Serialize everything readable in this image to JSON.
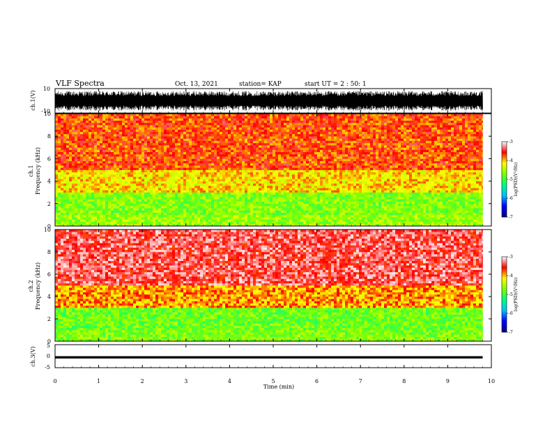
{
  "header": {
    "title": "VLF Spectra",
    "date": "Oct. 13, 2021",
    "station": "station= KAP",
    "start": "start UT = 2 : 50: 1"
  },
  "colors": {
    "spectrogram_scale": [
      "#00008b",
      "#0000ff",
      "#00bfff",
      "#00ff7f",
      "#7fff00",
      "#ffff00",
      "#ff0000",
      "#ffffff"
    ],
    "waveform": "#000000"
  },
  "chart_data": [
    {
      "type": "line",
      "ylabel": "ch.1(V)",
      "ylim": [
        -10,
        10
      ],
      "yticks": [
        "10",
        "-10"
      ],
      "xlim": [
        0,
        10
      ],
      "description_of_values": "dense waveform filling roughly -8 to 8 V from 0 to 9.8 min"
    },
    {
      "type": "heatmap",
      "ylabel": "ch.1\nFrequency (kHz)",
      "ylim": [
        0,
        10
      ],
      "yticks": [
        "0",
        "2",
        "4",
        "6",
        "8",
        "10"
      ],
      "xlim": [
        0,
        10
      ],
      "data_end_min": 9.8,
      "colorbar": {
        "label": "log(PSD)(V²/Hz)",
        "range": [
          -7,
          -3
        ],
        "ticks": [
          "-3",
          "-4",
          "-5",
          "-6",
          "-7"
        ]
      },
      "bands": [
        {
          "from_khz": 0,
          "to_khz": 1,
          "level": -4.6
        },
        {
          "from_khz": 1,
          "to_khz": 3,
          "level": -4.7
        },
        {
          "from_khz": 3,
          "to_khz": 5,
          "level": -4.1
        },
        {
          "from_khz": 5,
          "to_khz": 10,
          "level": -3.7
        }
      ]
    },
    {
      "type": "heatmap",
      "ylabel": "ch.2\nFrequency (kHz)",
      "ylim": [
        0,
        10
      ],
      "yticks": [
        "0",
        "2",
        "4",
        "6",
        "8",
        "10"
      ],
      "xlim": [
        0,
        10
      ],
      "data_end_min": 9.8,
      "colorbar": {
        "label": "log(PSD)(V²/Hz)",
        "range": [
          -7,
          -3
        ],
        "ticks": [
          "-3",
          "-4",
          "-5",
          "-6",
          "-7"
        ]
      },
      "bands": [
        {
          "from_khz": 0,
          "to_khz": 1,
          "level": -4.7
        },
        {
          "from_khz": 1,
          "to_khz": 3,
          "level": -4.8
        },
        {
          "from_khz": 3,
          "to_khz": 5,
          "level": -3.9
        },
        {
          "from_khz": 5,
          "to_khz": 10,
          "level": -3.4
        }
      ]
    },
    {
      "type": "line",
      "ylabel": "ch.3(V)",
      "ylim": [
        -5,
        5
      ],
      "yticks": [
        "5",
        "0",
        "-5"
      ],
      "xlim": [
        0,
        10
      ],
      "xlabel": "Time (min)",
      "xticks": [
        "0",
        "1",
        "2",
        "3",
        "4",
        "5",
        "6",
        "7",
        "8",
        "9",
        "10"
      ],
      "description_of_values": "narrow band between about -1 and 0 V from 0 to 9.8 min"
    }
  ]
}
